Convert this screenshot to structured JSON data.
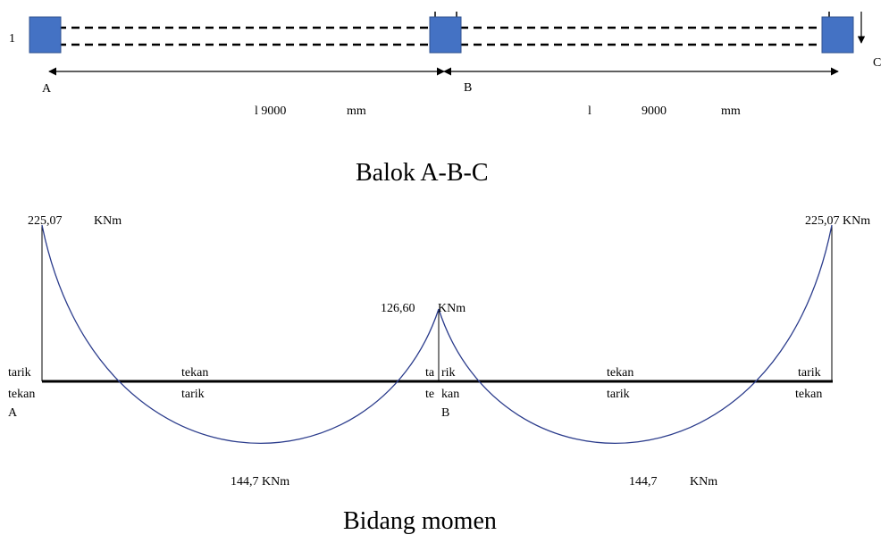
{
  "beam": {
    "left_marker": "1",
    "support_a": "A",
    "support_b": "B",
    "support_c": "C",
    "span1_label": "l 9000",
    "span1_unit": "mm",
    "span2_l": "l",
    "span2_value": "9000",
    "span2_unit": "mm",
    "title": "Balok A-B-C"
  },
  "moment": {
    "left_value": "225,07",
    "left_unit": "KNm",
    "right_value_unit": "225,07  KNm",
    "mid_value": "126,60",
    "mid_unit": "KNm",
    "span1_field": "144,7  KNm",
    "span2_value": "144,7",
    "span2_unit": "KNm",
    "zones": {
      "a_top": "tarik",
      "a_bottom": "tekan",
      "s1_top": "tekan",
      "s1_bottom": "tarik",
      "b_top_left": "ta",
      "b_top_right": "rik",
      "b_bottom_left": "te",
      "b_bottom_right": "kan",
      "s2_top": "tekan",
      "s2_bottom": "tarik",
      "c_top": "tarik",
      "c_bottom": "tekan"
    },
    "label_a": "A",
    "label_b": "B",
    "title": "Bidang momen"
  },
  "colors": {
    "support_fill": "#4472C4",
    "support_stroke": "#2F528F",
    "curve": "#2B3C8C",
    "line": "#000000"
  }
}
